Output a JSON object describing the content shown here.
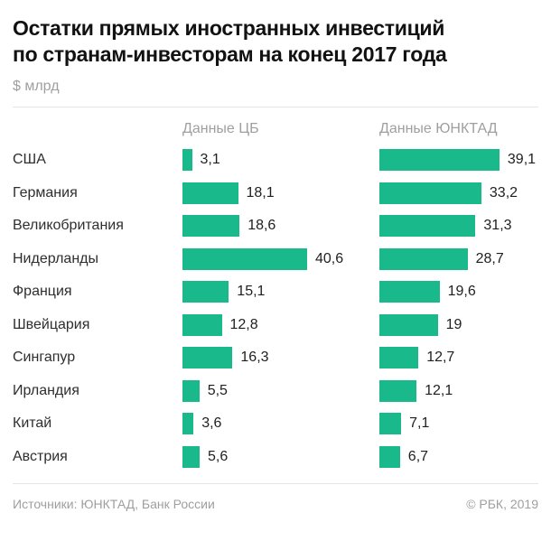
{
  "header": {
    "title_line1": "Остатки прямых иностранных инвестиций",
    "title_line2": "по странам-инвесторам на конец 2017 года",
    "subtitle": "$ млрд"
  },
  "chart_data": {
    "type": "bar",
    "orientation": "horizontal",
    "title": "Остатки прямых иностранных инвестиций по странам-инвесторам на конец 2017 года",
    "unit_label": "$ млрд",
    "categories": [
      "США",
      "Германия",
      "Великобритания",
      "Нидерланды",
      "Франция",
      "Швейцария",
      "Сингапур",
      "Ирландия",
      "Китай",
      "Австрия"
    ],
    "series": [
      {
        "name": "Данные ЦБ",
        "values": [
          3.1,
          18.1,
          18.6,
          40.6,
          15.1,
          12.8,
          16.3,
          5.5,
          3.6,
          5.6
        ]
      },
      {
        "name": "Данные ЮНКТАД",
        "values": [
          39.1,
          33.2,
          31.3,
          28.7,
          19.6,
          19,
          12.7,
          12.1,
          7.1,
          6.7
        ]
      }
    ],
    "value_labels": [
      [
        "3,1",
        "18,1",
        "18,6",
        "40,6",
        "15,1",
        "12,8",
        "16,3",
        "5,5",
        "3,6",
        "5,6"
      ],
      [
        "39,1",
        "33,2",
        "31,3",
        "28,7",
        "19,6",
        "19",
        "12,7",
        "12,1",
        "7,1",
        "6,7"
      ]
    ],
    "bar_color": "#1ab98b",
    "xlim": [
      0,
      45
    ],
    "grid": false,
    "legend_position": "column-headers"
  },
  "footer": {
    "sources": "Источники: ЮНКТАД, Банк России",
    "copyright": "© РБК, 2019"
  }
}
